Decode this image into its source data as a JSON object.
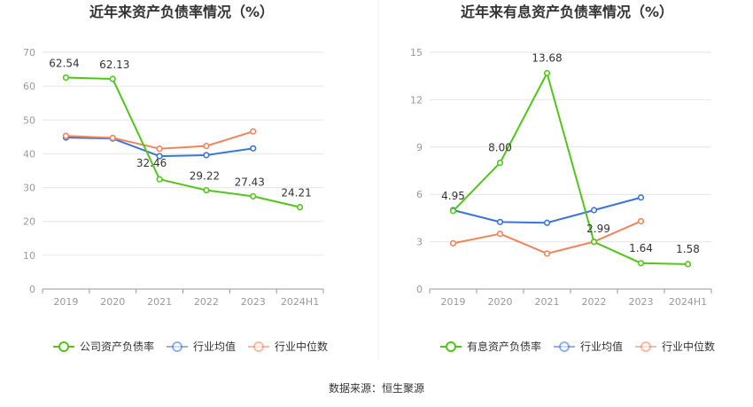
{
  "source": "数据来源：恒生聚源",
  "chart_data": [
    {
      "type": "line",
      "title": "近年来资产负债率情况（%）",
      "categories": [
        "2019",
        "2020",
        "2021",
        "2022",
        "2023",
        "2024H1"
      ],
      "ylim": [
        0,
        70
      ],
      "yticks": [
        0,
        10,
        20,
        30,
        40,
        50,
        60,
        70
      ],
      "grid": true,
      "legend_position": "bottom",
      "series": [
        {
          "name": "公司资产负债率",
          "color": "#52c41a",
          "values": [
            62.54,
            62.13,
            32.46,
            29.22,
            27.43,
            24.21
          ],
          "labels": [
            "62.54",
            "62.13",
            "32.46",
            "29.22",
            "27.43",
            "24.21"
          ]
        },
        {
          "name": "行业均值",
          "color": "#3a75d8",
          "values": [
            44.8,
            44.5,
            39.3,
            39.6,
            41.6,
            null
          ]
        },
        {
          "name": "行业中位数",
          "color": "#f0845a",
          "values": [
            45.3,
            44.7,
            41.5,
            42.3,
            46.6,
            null
          ]
        }
      ]
    },
    {
      "type": "line",
      "title": "近年来有息资产负债率情况（%）",
      "categories": [
        "2019",
        "2020",
        "2021",
        "2022",
        "2023",
        "2024H1"
      ],
      "ylim": [
        0,
        15
      ],
      "yticks": [
        0,
        3,
        6,
        9,
        12,
        15
      ],
      "grid": true,
      "legend_position": "bottom",
      "series": [
        {
          "name": "有息资产负债率",
          "color": "#52c41a",
          "values": [
            4.95,
            8.0,
            13.68,
            2.99,
            1.64,
            1.58
          ],
          "labels": [
            "4.95",
            "8.00",
            "13.68",
            "2.99",
            "1.64",
            "1.58"
          ]
        },
        {
          "name": "行业均值",
          "color": "#3a75d8",
          "values": [
            5.0,
            4.25,
            4.2,
            5.0,
            5.8,
            null
          ]
        },
        {
          "name": "行业中位数",
          "color": "#f0845a",
          "values": [
            2.9,
            3.5,
            2.25,
            3.0,
            4.3,
            null
          ]
        }
      ]
    }
  ]
}
